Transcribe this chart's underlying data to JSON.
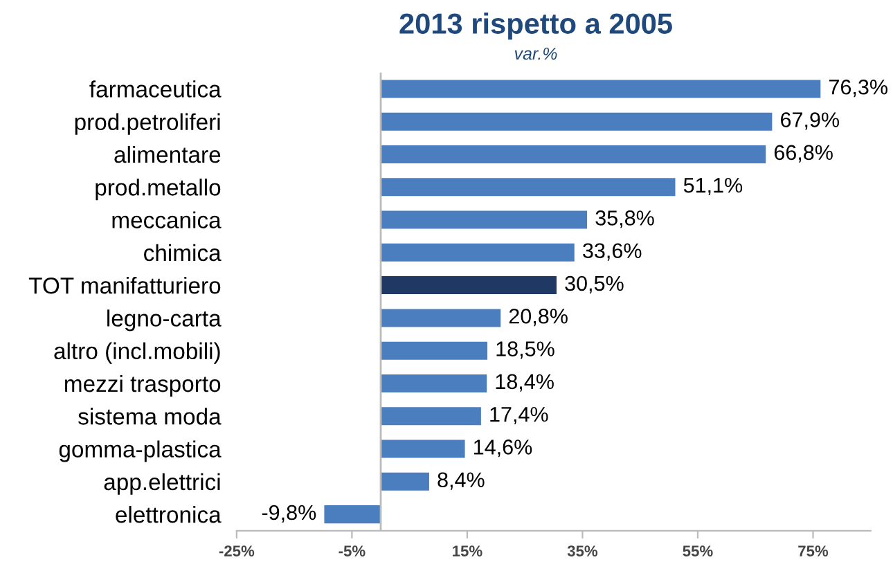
{
  "chart_data": {
    "type": "bar",
    "orientation": "horizontal",
    "title": "2013 rispetto a 2005",
    "subtitle": "var.%",
    "categories": [
      "farmaceutica",
      "prod.petroliferi",
      "alimentare",
      "prod.metallo",
      "meccanica",
      "chimica",
      "TOT manifatturiero",
      "legno-carta",
      "altro (incl.mobili)",
      "mezzi trasporto",
      "sistema moda",
      "gomma-plastica",
      "app.elettrici",
      "elettronica"
    ],
    "values": [
      76.3,
      67.9,
      66.8,
      51.1,
      35.8,
      33.6,
      30.5,
      20.8,
      18.5,
      18.4,
      17.4,
      14.6,
      8.4,
      -9.8
    ],
    "colors": [
      "#4a7ebf",
      "#4a7ebf",
      "#4a7ebf",
      "#4a7ebf",
      "#4a7ebf",
      "#4a7ebf",
      "#1f3864",
      "#4a7ebf",
      "#4a7ebf",
      "#4a7ebf",
      "#4a7ebf",
      "#4a7ebf",
      "#4a7ebf",
      "#4a7ebf"
    ],
    "value_labels": [
      "76,3%",
      "67,9%",
      "66,8%",
      "51,1%",
      "35,8%",
      "33,6%",
      "30,5%",
      "20,8%",
      "18,5%",
      "18,4%",
      "17,4%",
      "14,6%",
      "8,4%",
      "-9,8%"
    ],
    "xlim": [
      -25,
      85
    ],
    "xticks": [
      {
        "value": -25,
        "label": "-25%"
      },
      {
        "value": -5,
        "label": "-5%"
      },
      {
        "value": 15,
        "label": "15%"
      },
      {
        "value": 35,
        "label": "35%"
      },
      {
        "value": 55,
        "label": "55%"
      },
      {
        "value": 75,
        "label": "75%"
      }
    ],
    "grid": false,
    "legend": false
  }
}
